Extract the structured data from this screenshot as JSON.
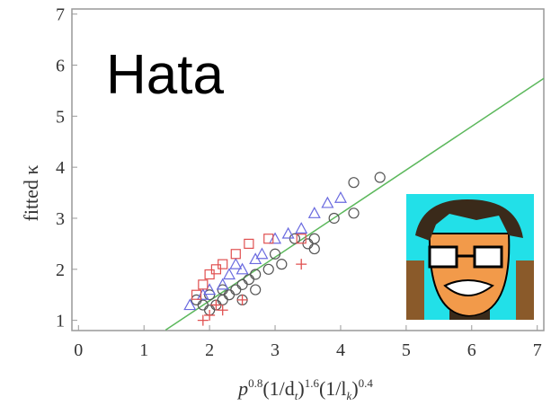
{
  "chart_data": {
    "type": "scatter",
    "annotation": "Hata",
    "x_label": [
      "p",
      "0.8",
      "(1/d",
      "t",
      ")",
      "1.6",
      "(1/l",
      "k",
      ")",
      "0.4"
    ],
    "y_label": "fitted κ",
    "xlim": [
      -0.1,
      7.1
    ],
    "ylim": [
      0.8,
      7.1
    ],
    "xticks": [
      0,
      1,
      2,
      3,
      4,
      5,
      6,
      7
    ],
    "yticks": [
      1,
      2,
      3,
      4,
      5,
      6,
      7
    ],
    "series": [
      {
        "marker": "circle",
        "color": "#555555",
        "x": [
          4.6,
          4.2,
          4.2,
          3.9,
          3.6,
          3.6,
          3.5,
          3.3,
          3.1,
          3.0,
          2.9,
          2.7,
          2.6,
          2.5,
          2.4,
          2.3,
          2.2,
          2.1,
          2.0,
          1.9,
          1.8,
          2.2,
          2.5,
          2.7,
          2.0
        ],
        "values": [
          3.8,
          3.7,
          3.1,
          3.0,
          2.6,
          2.4,
          2.5,
          2.6,
          2.1,
          2.3,
          2.0,
          1.9,
          1.8,
          1.7,
          1.6,
          1.5,
          1.4,
          1.3,
          1.2,
          1.3,
          1.4,
          1.6,
          1.4,
          1.6,
          1.5
        ]
      },
      {
        "marker": "triangle",
        "color": "#6a6adf",
        "x": [
          4.0,
          3.8,
          3.6,
          3.2,
          3.0,
          2.8,
          2.7,
          2.5,
          2.3,
          2.2,
          2.0,
          1.9,
          1.7,
          2.4,
          3.4
        ],
        "values": [
          3.4,
          3.3,
          3.1,
          2.7,
          2.6,
          2.3,
          2.2,
          2.0,
          1.9,
          1.7,
          1.6,
          1.5,
          1.3,
          2.1,
          2.8
        ]
      },
      {
        "marker": "square",
        "color": "#e05050",
        "x": [
          3.4,
          2.6,
          2.4,
          2.1,
          2.0,
          1.9,
          1.8,
          2.2,
          2.9
        ],
        "values": [
          2.6,
          2.5,
          2.3,
          2.0,
          1.9,
          1.7,
          1.5,
          2.1,
          2.6
        ]
      },
      {
        "marker": "plus",
        "color": "#e05050",
        "x": [
          3.4,
          2.5,
          2.2,
          2.0,
          1.9,
          2.1
        ],
        "values": [
          2.1,
          1.4,
          1.2,
          1.1,
          1.0,
          1.3
        ]
      }
    ],
    "fit_line": {
      "color": "#5cb85c",
      "x": [
        1.33,
        7.1
      ],
      "values": [
        0.81,
        5.74
      ]
    }
  }
}
